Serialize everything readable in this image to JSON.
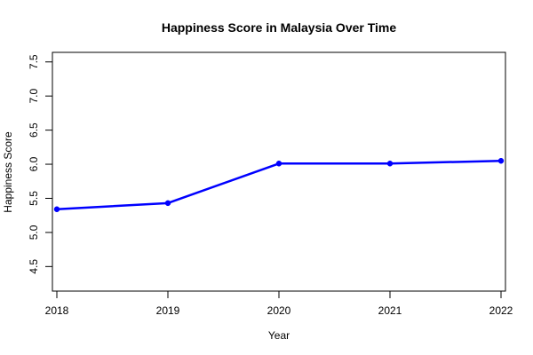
{
  "chart_data": {
    "type": "line",
    "title": "Happiness Score in Malaysia Over Time",
    "xlabel": "Year",
    "ylabel": "Happiness Score",
    "x": [
      2018,
      2019,
      2020,
      2021,
      2022
    ],
    "x_tick_labels": [
      "2018",
      "2019",
      "2020",
      "2021",
      "2022"
    ],
    "series": [
      {
        "values": [
          5.34,
          5.43,
          6.01,
          6.01,
          6.05
        ],
        "color": "#0000ff"
      }
    ],
    "y_ticks": [
      4.5,
      5.0,
      5.5,
      6.0,
      6.5,
      7.0,
      7.5
    ],
    "y_tick_labels": [
      "4.5",
      "5.0",
      "5.5",
      "6.0",
      "6.5",
      "7.0",
      "7.5"
    ],
    "xlim": [
      2017.96,
      2022.04
    ],
    "ylim": [
      4.14,
      7.64
    ],
    "grid": false,
    "legend": "none",
    "marker": "filled-circle"
  }
}
